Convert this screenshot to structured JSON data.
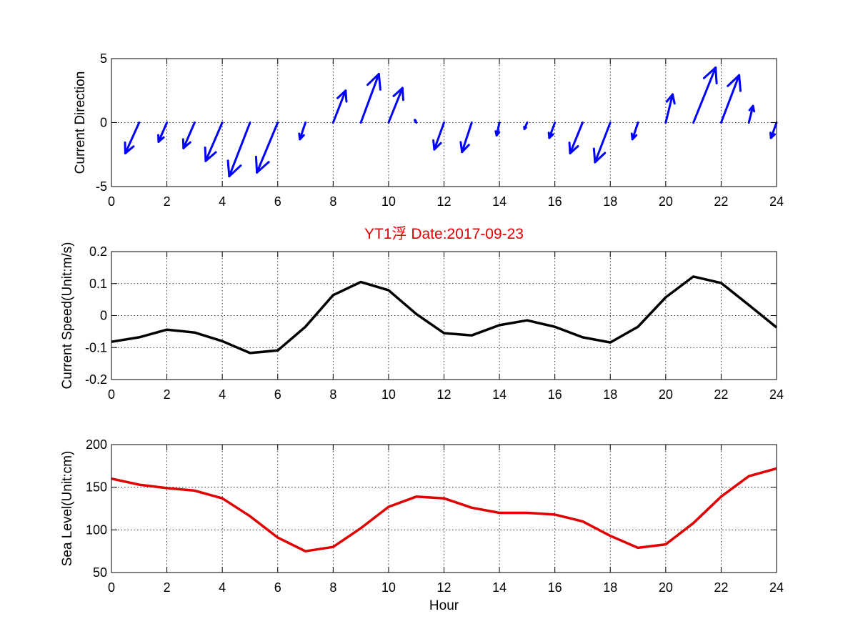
{
  "chart_data": [
    {
      "type": "quiver",
      "title": "",
      "xlabel": "",
      "ylabel": "Current Direction",
      "xlim": [
        0,
        24
      ],
      "ylim": [
        -5,
        5
      ],
      "xticks": [
        "0",
        "2",
        "4",
        "6",
        "8",
        "10",
        "12",
        "14",
        "16",
        "18",
        "20",
        "22",
        "24"
      ],
      "yticks": [
        "-5",
        "0",
        "5"
      ],
      "grid": true,
      "color": "#0000ff",
      "x": [
        1,
        2,
        3,
        4,
        5,
        6,
        7,
        8,
        9,
        10,
        11,
        12,
        13,
        14,
        15,
        16,
        17,
        18,
        19,
        20,
        21,
        22,
        23,
        24
      ],
      "u": [
        -0.5,
        -0.3,
        -0.4,
        -0.6,
        -0.75,
        -0.75,
        -0.2,
        0.45,
        0.65,
        0.5,
        -0.05,
        -0.35,
        -0.35,
        -0.1,
        -0.1,
        -0.2,
        -0.45,
        -0.55,
        -0.2,
        0.25,
        0.8,
        0.65,
        0.15,
        -0.2
      ],
      "v": [
        -2.4,
        -1.5,
        -2.0,
        -3.0,
        -4.2,
        -3.9,
        -1.3,
        2.5,
        3.8,
        2.7,
        0.2,
        -2.1,
        -2.3,
        -1.0,
        -0.5,
        -1.2,
        -2.4,
        -3.1,
        -1.3,
        2.2,
        4.3,
        3.7,
        1.3,
        -1.2
      ]
    },
    {
      "type": "line",
      "title": "YT1浮    Date:2017-09-23",
      "xlabel": "",
      "ylabel": "Current Speed(Unit:m/s)",
      "xlim": [
        0,
        24
      ],
      "ylim": [
        -0.2,
        0.2
      ],
      "xticks": [
        "0",
        "2",
        "4",
        "6",
        "8",
        "10",
        "12",
        "14",
        "16",
        "18",
        "20",
        "22",
        "24"
      ],
      "yticks": [
        "-0.2",
        "-0.1",
        "0",
        "0.1",
        "0.2"
      ],
      "grid": true,
      "color": "#000000",
      "x": [
        0,
        1,
        2,
        3,
        4,
        5,
        6,
        7,
        8,
        9,
        10,
        11,
        12,
        13,
        14,
        15,
        16,
        17,
        18,
        19,
        20,
        21,
        22,
        23,
        24
      ],
      "y": [
        -0.082,
        -0.068,
        -0.044,
        -0.053,
        -0.08,
        -0.117,
        -0.109,
        -0.035,
        0.064,
        0.105,
        0.079,
        0.005,
        -0.055,
        -0.062,
        -0.03,
        -0.015,
        -0.035,
        -0.068,
        -0.084,
        -0.035,
        0.057,
        0.122,
        0.102,
        0.033,
        -0.037
      ]
    },
    {
      "type": "line",
      "title": "",
      "xlabel": "Hour",
      "ylabel": "Sea Level(Unit:cm)",
      "xlim": [
        0,
        24
      ],
      "ylim": [
        50,
        200
      ],
      "xticks": [
        "0",
        "2",
        "4",
        "6",
        "8",
        "10",
        "12",
        "14",
        "16",
        "18",
        "20",
        "22",
        "24"
      ],
      "yticks": [
        "50",
        "100",
        "150",
        "200"
      ],
      "grid": true,
      "color": "#e00000",
      "x": [
        0,
        1,
        2,
        3,
        4,
        5,
        6,
        7,
        8,
        9,
        10,
        11,
        12,
        13,
        14,
        15,
        16,
        17,
        18,
        19,
        20,
        21,
        22,
        23,
        24
      ],
      "y": [
        160,
        153,
        149,
        146,
        137,
        116,
        91,
        75,
        80,
        102,
        127,
        139,
        137,
        126,
        120,
        120,
        118,
        110,
        93,
        79,
        83,
        108,
        139,
        163,
        172
      ]
    }
  ]
}
